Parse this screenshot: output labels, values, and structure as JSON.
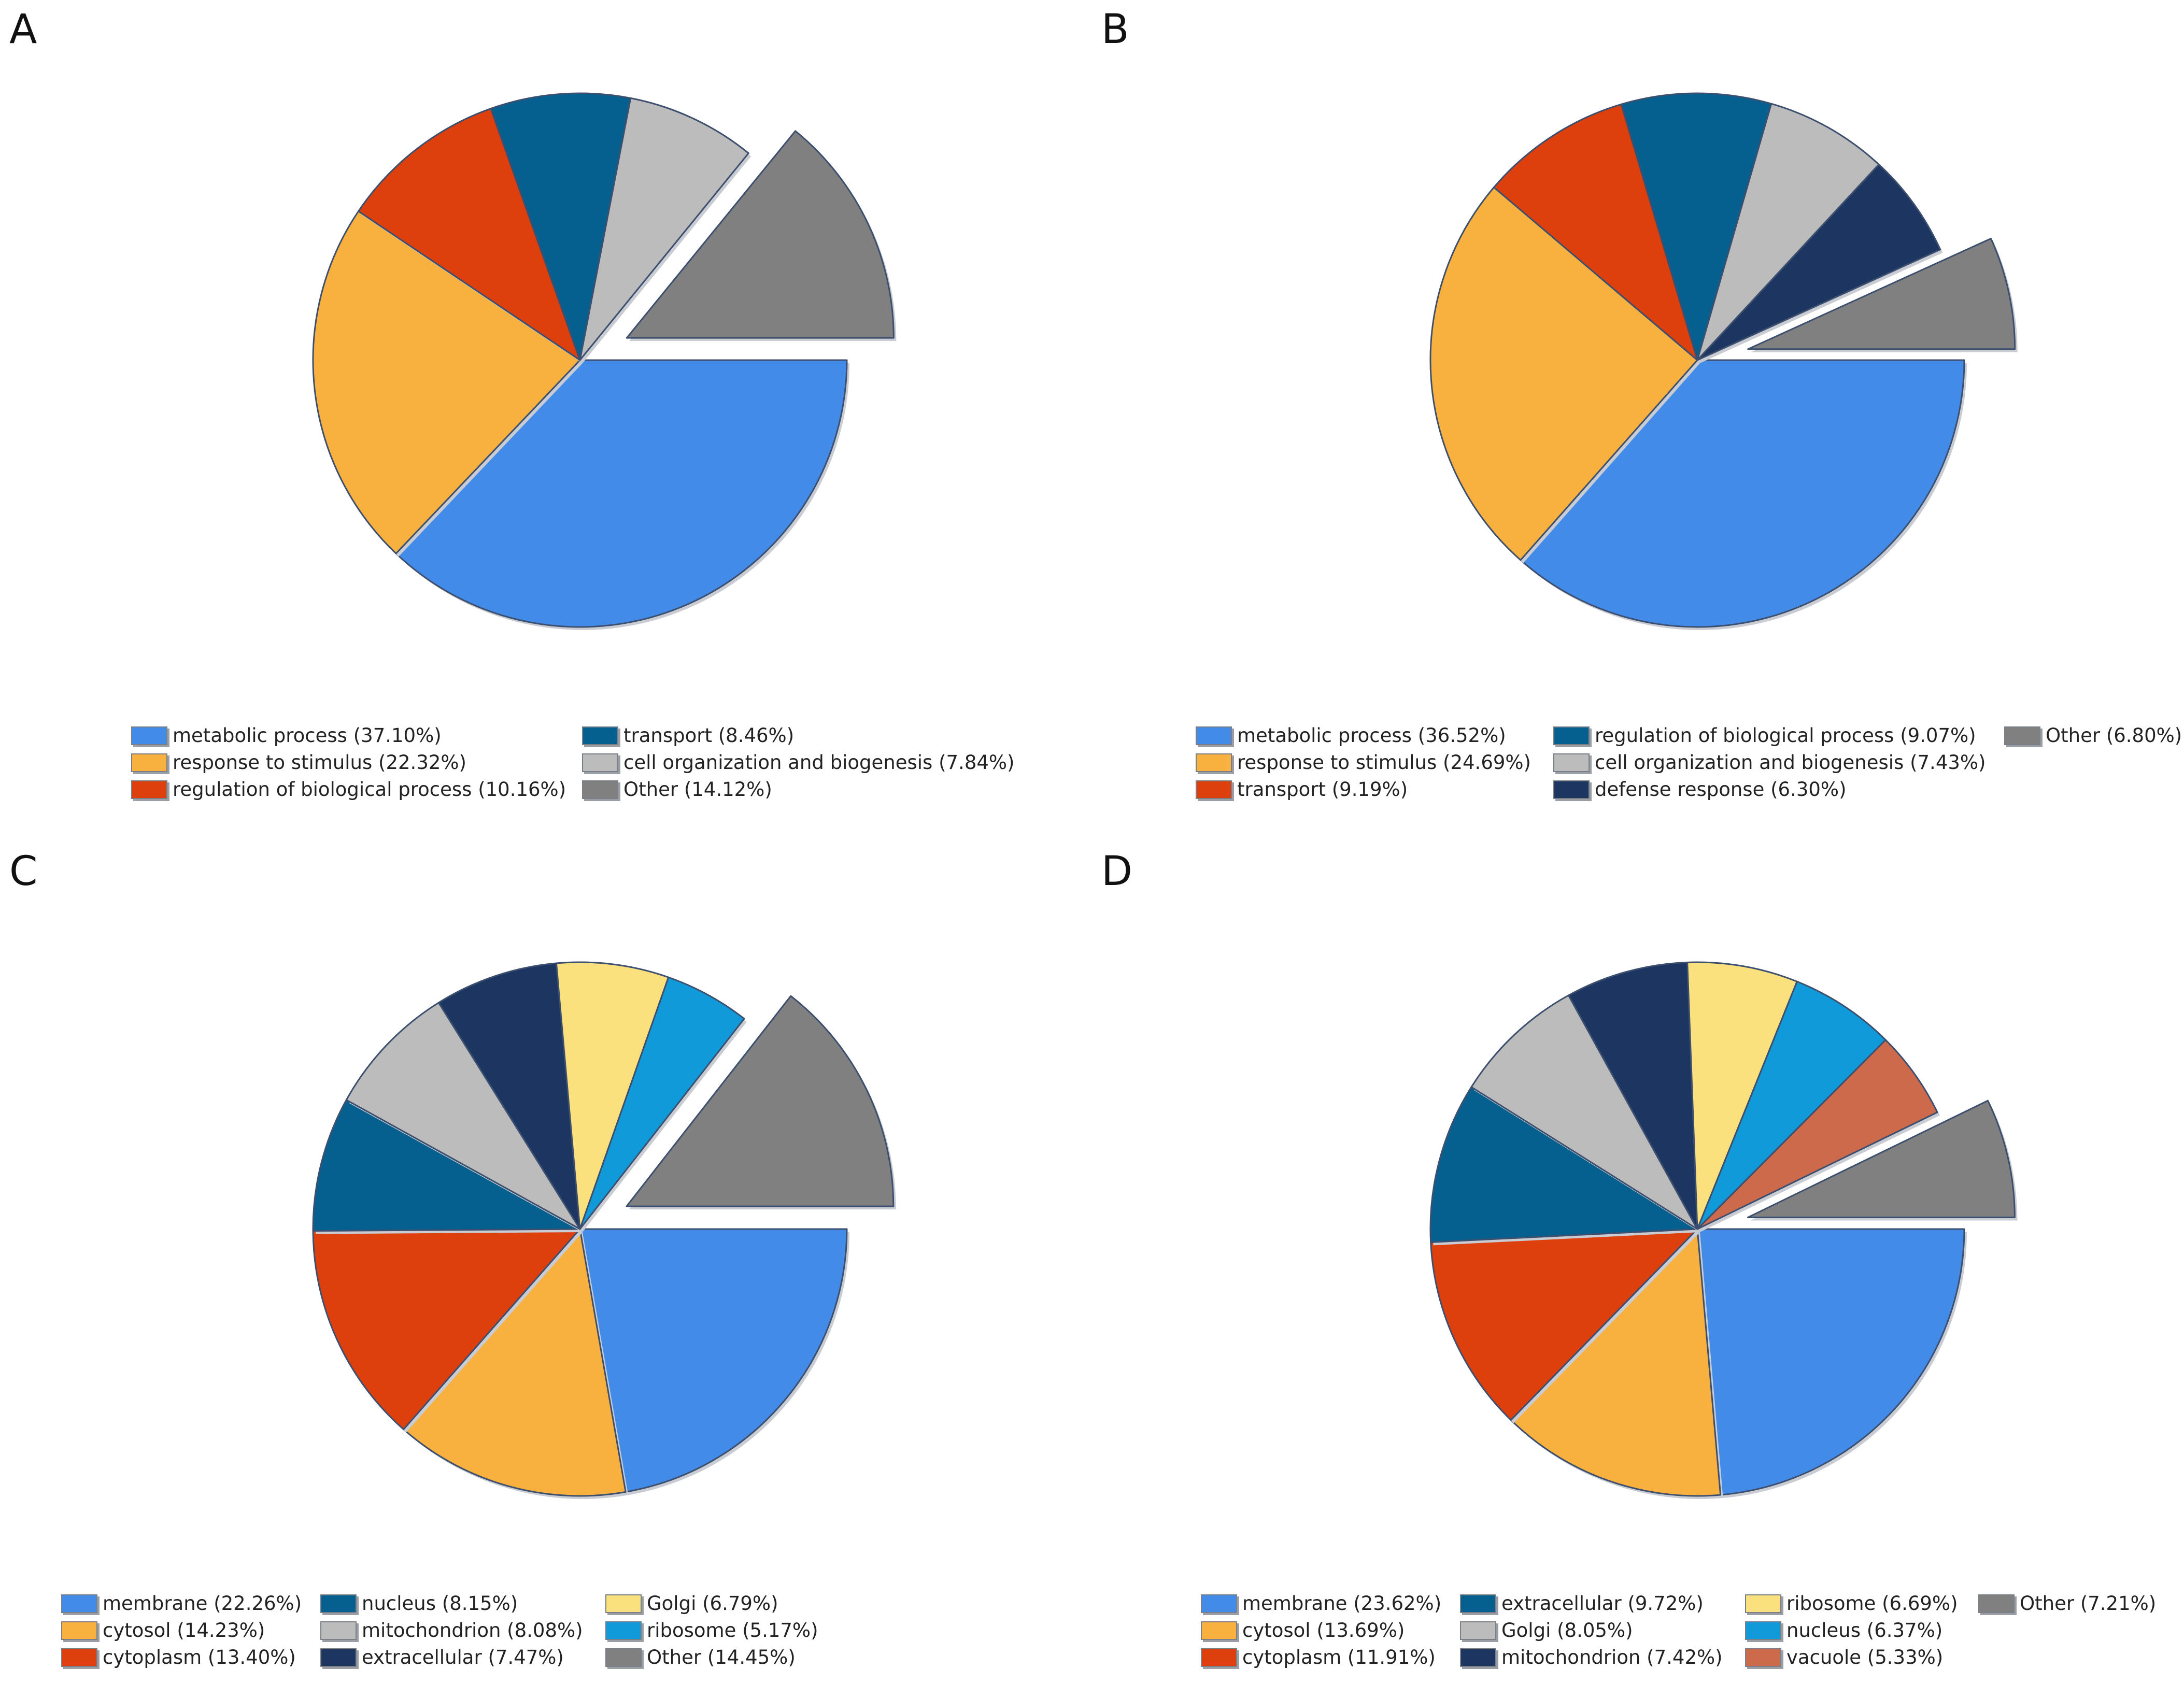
{
  "figure_title": "",
  "chart_data": [
    {
      "type": "pie",
      "panel_label": "A",
      "exploded": "Other",
      "title": "",
      "legend_columns": 2,
      "slices": [
        {
          "label": "metabolic process (37.10%)",
          "name": "metabolic process",
          "value": 37.1,
          "color": "#428be9"
        },
        {
          "label": "response to stimulus (22.32%)",
          "name": "response to stimulus",
          "value": 22.32,
          "color": "#f8b13f"
        },
        {
          "label": "regulation of biological process (10.16%)",
          "name": "regulation of biological process",
          "value": 10.16,
          "color": "#dd3f0d"
        },
        {
          "label": "transport (8.46%)",
          "name": "transport",
          "value": 8.46,
          "color": "#05608f"
        },
        {
          "label": "cell organization and biogenesis (7.84%)",
          "name": "cell organization and biogenesis",
          "value": 7.84,
          "color": "#bcbcbc"
        },
        {
          "label": "Other (14.12%)",
          "name": "Other",
          "value": 14.12,
          "color": "#808080"
        }
      ]
    },
    {
      "type": "pie",
      "panel_label": "B",
      "exploded": "Other",
      "title": "",
      "legend_columns": 3,
      "slices": [
        {
          "label": "metabolic process (36.52%)",
          "name": "metabolic process",
          "value": 36.52,
          "color": "#428be9"
        },
        {
          "label": "response to stimulus (24.69%)",
          "name": "response to stimulus",
          "value": 24.69,
          "color": "#f8b13f"
        },
        {
          "label": "transport (9.19%)",
          "name": "transport",
          "value": 9.19,
          "color": "#dd3f0d"
        },
        {
          "label": "regulation of biological process (9.07%)",
          "name": "regulation of biological process",
          "value": 9.07,
          "color": "#05608f"
        },
        {
          "label": "cell organization and biogenesis (7.43%)",
          "name": "cell organization and biogenesis",
          "value": 7.43,
          "color": "#bcbcbc"
        },
        {
          "label": "defense response (6.30%)",
          "name": "defense response",
          "value": 6.3,
          "color": "#1c3561"
        },
        {
          "label": "Other (6.80%)",
          "name": "Other",
          "value": 6.8,
          "color": "#808080"
        }
      ]
    },
    {
      "type": "pie",
      "panel_label": "C",
      "exploded": "Other",
      "title": "",
      "legend_columns": 4,
      "slices": [
        {
          "label": "membrane (22.26%)",
          "name": "membrane",
          "value": 22.26,
          "color": "#428be9"
        },
        {
          "label": "cytosol (14.23%)",
          "name": "cytosol",
          "value": 14.23,
          "color": "#f8b13f"
        },
        {
          "label": "cytoplasm (13.40%)",
          "name": "cytoplasm",
          "value": 13.4,
          "color": "#dd3f0d"
        },
        {
          "label": "nucleus (8.15%)",
          "name": "nucleus",
          "value": 8.15,
          "color": "#05608f"
        },
        {
          "label": "mitochondrion (8.08%)",
          "name": "mitochondrion",
          "value": 8.08,
          "color": "#bcbcbc"
        },
        {
          "label": "extracellular (7.47%)",
          "name": "extracellular",
          "value": 7.47,
          "color": "#1c3561"
        },
        {
          "label": "Golgi (6.79%)",
          "name": "Golgi",
          "value": 6.79,
          "color": "#fbe07e"
        },
        {
          "label": "ribosome (5.17%)",
          "name": "ribosome",
          "value": 5.17,
          "color": "#109ada"
        },
        {
          "label": "Other (14.45%)",
          "name": "Other",
          "value": 14.45,
          "color": "#808080"
        }
      ]
    },
    {
      "type": "pie",
      "panel_label": "D",
      "exploded": "Other",
      "title": "",
      "legend_columns": 4,
      "slices": [
        {
          "label": "membrane (23.62%)",
          "name": "membrane",
          "value": 23.62,
          "color": "#428be9"
        },
        {
          "label": "cytosol (13.69%)",
          "name": "cytosol",
          "value": 13.69,
          "color": "#f8b13f"
        },
        {
          "label": "cytoplasm (11.91%)",
          "name": "cytoplasm",
          "value": 11.91,
          "color": "#dd3f0d"
        },
        {
          "label": "extracellular (9.72%)",
          "name": "extracellular",
          "value": 9.72,
          "color": "#05608f"
        },
        {
          "label": "Golgi (8.05%)",
          "name": "Golgi",
          "value": 8.05,
          "color": "#bcbcbc"
        },
        {
          "label": "mitochondrion (7.42%)",
          "name": "mitochondrion",
          "value": 7.42,
          "color": "#1c3561"
        },
        {
          "label": "ribosome (6.69%)",
          "name": "ribosome",
          "value": 6.69,
          "color": "#fbe07e"
        },
        {
          "label": "nucleus (6.37%)",
          "name": "nucleus",
          "value": 6.37,
          "color": "#109ada"
        },
        {
          "label": "vacuole (5.33%)",
          "name": "vacuole",
          "value": 5.33,
          "color": "#cd6a4c"
        },
        {
          "label": "Other (7.21%)",
          "name": "Other",
          "value": 7.21,
          "color": "#808080"
        }
      ]
    }
  ]
}
